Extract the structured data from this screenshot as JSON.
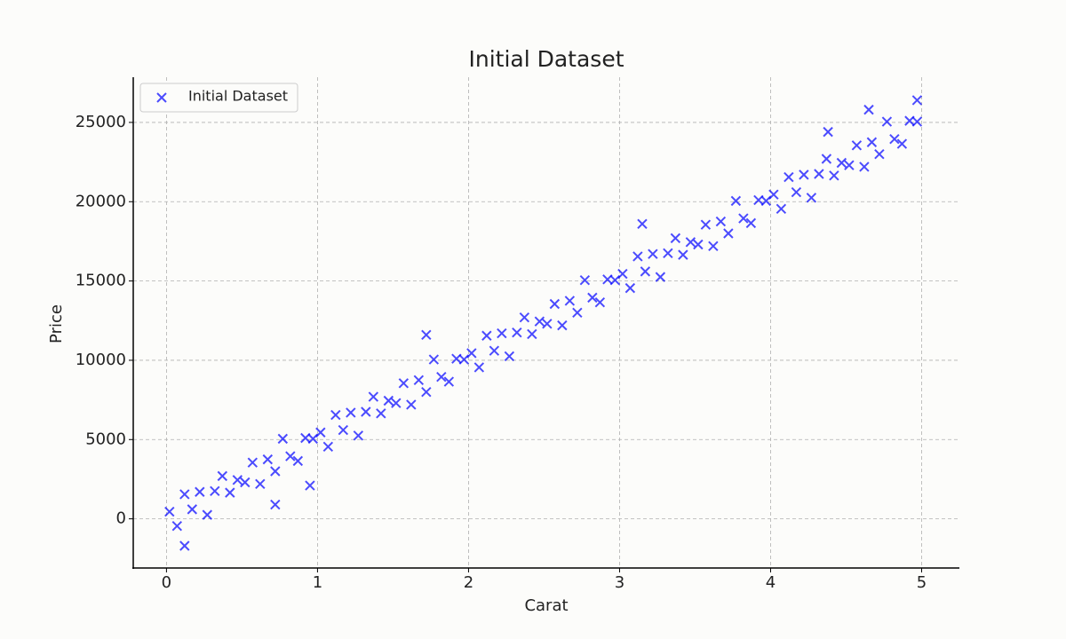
{
  "chart_data": {
    "type": "scatter",
    "title": "Initial Dataset",
    "x_label": "Carat",
    "y_label": "Price",
    "xlim": [
      -0.22,
      5.25
    ],
    "ylim": [
      -3100,
      27850
    ],
    "xticks": [
      0,
      1,
      2,
      3,
      4,
      5
    ],
    "yticks": [
      0,
      5000,
      10000,
      15000,
      20000,
      25000
    ],
    "grid": true,
    "legend": "upper left",
    "marker": "x",
    "series": [
      {
        "name": "Initial Dataset",
        "color": "#0000ff",
        "x": [
          0.02,
          0.07,
          0.12,
          0.17,
          0.22,
          0.27,
          0.32,
          0.37,
          0.42,
          0.47,
          0.52,
          0.57,
          0.62,
          0.67,
          0.72,
          0.77,
          0.82,
          0.87,
          0.92,
          0.97,
          1.02,
          1.07,
          1.12,
          1.17,
          1.22,
          1.27,
          1.32,
          1.37,
          1.42,
          1.47,
          1.52,
          1.57,
          1.62,
          1.67,
          1.72,
          1.77,
          1.82,
          1.87,
          1.92,
          1.97,
          2.02,
          2.07,
          2.12,
          2.17,
          2.22,
          2.27,
          2.32,
          2.37,
          2.42,
          2.47,
          2.52,
          2.57,
          2.62,
          2.67,
          2.72,
          2.77,
          2.82,
          2.87,
          2.92,
          2.97,
          3.02,
          3.07,
          3.12,
          3.17,
          3.22,
          3.27,
          3.32,
          3.37,
          3.42,
          3.47,
          3.52,
          3.57,
          3.62,
          3.67,
          3.72,
          3.77,
          3.82,
          3.87,
          3.92,
          3.97,
          4.02,
          4.07,
          4.12,
          4.17,
          4.22,
          4.27,
          4.32,
          4.37,
          4.42,
          4.47,
          4.52,
          4.57,
          4.62,
          4.67,
          4.72,
          4.77,
          4.82,
          4.87,
          4.92,
          4.97,
          0.12,
          0.72,
          0.95,
          1.72,
          3.15,
          4.38,
          4.97,
          4.65
        ],
        "values": [
          450,
          -450,
          1550,
          600,
          1700,
          250,
          1750,
          2700,
          1650,
          2450,
          2300,
          3550,
          2200,
          3750,
          3000,
          5050,
          3950,
          3650,
          5100,
          5050,
          5450,
          4550,
          6550,
          5600,
          6700,
          5250,
          6750,
          7700,
          6650,
          7450,
          7300,
          8550,
          7200,
          8750,
          8000,
          10050,
          8950,
          8650,
          10100,
          10050,
          10450,
          9550,
          11550,
          10600,
          11700,
          10250,
          11750,
          12700,
          11650,
          12450,
          12300,
          13550,
          12200,
          13750,
          13000,
          15050,
          13950,
          13650,
          15100,
          15050,
          15450,
          14550,
          16550,
          15600,
          16700,
          15250,
          16750,
          17700,
          16650,
          17450,
          17300,
          18550,
          17200,
          18750,
          18000,
          20050,
          18950,
          18650,
          20100,
          20050,
          20450,
          19550,
          21550,
          20600,
          21700,
          20250,
          21750,
          22700,
          21650,
          22450,
          22300,
          23550,
          22200,
          23750,
          23000,
          25050,
          23950,
          23650,
          25100,
          25050,
          -1700,
          900,
          2100,
          11600,
          18600,
          24400,
          26400,
          25800
        ]
      }
    ]
  }
}
